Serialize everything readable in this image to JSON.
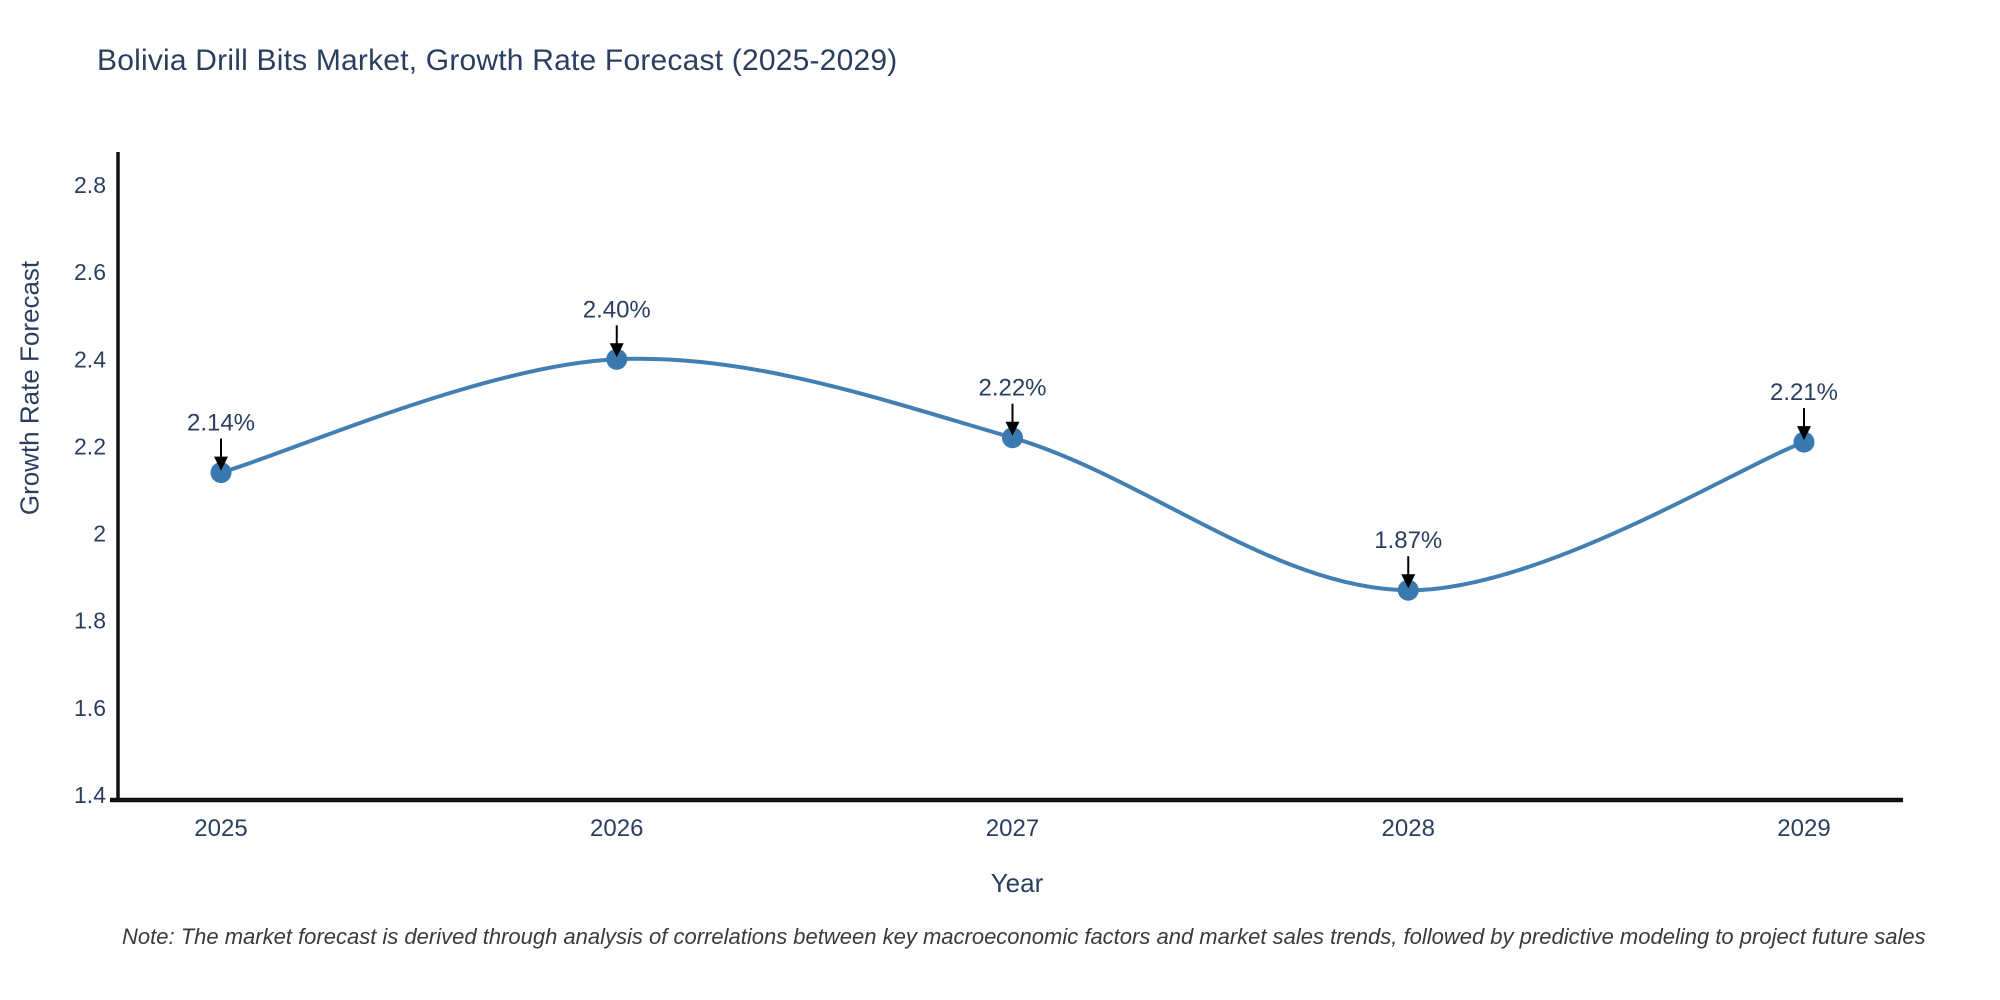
{
  "title": "Bolivia Drill Bits Market, Growth Rate Forecast (2025-2029)",
  "note": "Note: The market forecast is derived through analysis of correlations between key macroeconomic factors and market sales trends, followed by predictive modeling to project future sales",
  "colors": {
    "line": "#4280b4",
    "marker": "#3a78b0",
    "axis": "#111111",
    "text": "#2a3f5f",
    "arrow": "#000000",
    "note_text": "#3a3a3a"
  },
  "chart_data": {
    "type": "line",
    "title": "Bolivia Drill Bits Market, Growth Rate Forecast (2025-2029)",
    "xlabel": "Year",
    "ylabel": "Growth Rate Forecast",
    "x": [
      2025,
      2026,
      2027,
      2028,
      2029
    ],
    "y": [
      2.14,
      2.4,
      2.22,
      1.87,
      2.21
    ],
    "point_labels": [
      "2.14%",
      "2.40%",
      "2.22%",
      "1.87%",
      "2.21%"
    ],
    "x_ticks": [
      "2025",
      "2026",
      "2027",
      "2028",
      "2029"
    ],
    "y_ticks": [
      "1.4",
      "1.6",
      "1.8",
      "2",
      "2.2",
      "2.4",
      "2.6",
      "2.8"
    ],
    "ylim": [
      1.4,
      2.8
    ],
    "grid": false,
    "legend": "none",
    "line_shape": "spline",
    "annotations": "value labels with down arrows above each point"
  }
}
